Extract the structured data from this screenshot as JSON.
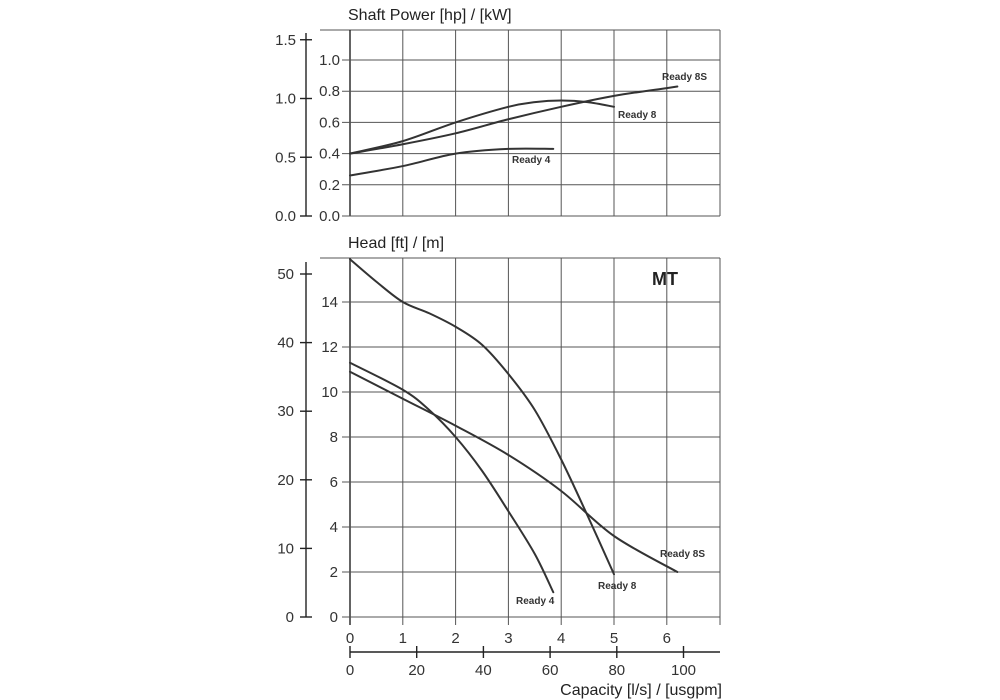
{
  "chart_data": [
    {
      "type": "line",
      "title": "Shaft Power [hp] / [kW]",
      "xlabel": "Capacity [l/s] / [usgpm]",
      "ylabel": "Shaft Power [kW]",
      "secondary_ylabel": "Shaft Power [hp]",
      "xlim": [
        0,
        7
      ],
      "ylim": [
        0,
        1.1
      ],
      "grid": true,
      "x_ticks": [
        "0",
        "1",
        "2",
        "3",
        "4",
        "5",
        "6"
      ],
      "y_ticks_kw": [
        "0.0",
        "0.2",
        "0.4",
        "0.6",
        "0.8",
        "1.0"
      ],
      "y_ticks_hp": [
        "0.0",
        "0.5",
        "1.0",
        "1.5"
      ],
      "series": [
        {
          "name": "Ready 8S",
          "x": [
            0,
            1,
            2,
            3,
            4,
            5,
            6,
            6.2
          ],
          "y": [
            0.4,
            0.46,
            0.53,
            0.62,
            0.7,
            0.77,
            0.82,
            0.83
          ]
        },
        {
          "name": "Ready 8",
          "x": [
            0,
            1,
            2,
            3,
            3.5,
            4,
            4.5,
            5
          ],
          "y": [
            0.4,
            0.48,
            0.6,
            0.7,
            0.73,
            0.74,
            0.73,
            0.7
          ]
        },
        {
          "name": "Ready 4",
          "x": [
            0,
            1,
            2,
            3,
            3.85
          ],
          "y": [
            0.26,
            0.32,
            0.4,
            0.43,
            0.43
          ]
        }
      ]
    },
    {
      "type": "line",
      "title": "Head [ft] / [m]",
      "badge": "MT",
      "xlabel": "Capacity [l/s] / [usgpm]",
      "ylabel": "Head [m]",
      "secondary_ylabel": "Head [ft]",
      "xlim": [
        0,
        7
      ],
      "ylim": [
        0,
        16
      ],
      "grid": true,
      "x_ticks": [
        "0",
        "1",
        "2",
        "3",
        "4",
        "5",
        "6"
      ],
      "x2_ticks_usgpm": [
        "0",
        "20",
        "40",
        "60",
        "80",
        "100"
      ],
      "y_ticks_m": [
        "0",
        "2",
        "4",
        "6",
        "8",
        "10",
        "12",
        "14"
      ],
      "y_ticks_ft": [
        "0",
        "10",
        "20",
        "30",
        "40",
        "50"
      ],
      "series": [
        {
          "name": "Ready 8",
          "x": [
            0,
            0.5,
            1,
            1.5,
            2,
            2.5,
            3,
            3.5,
            4,
            4.5,
            5
          ],
          "y": [
            15.9,
            14.9,
            14.0,
            13.5,
            12.9,
            12.1,
            10.8,
            9.2,
            7.0,
            4.5,
            1.9
          ]
        },
        {
          "name": "Ready 8S",
          "x": [
            0,
            1,
            2,
            3,
            4,
            5,
            6.2
          ],
          "y": [
            10.9,
            9.7,
            8.5,
            7.2,
            5.6,
            3.6,
            2.0
          ]
        },
        {
          "name": "Ready 4",
          "x": [
            0,
            1,
            1.5,
            2,
            2.5,
            3,
            3.5,
            3.85
          ],
          "y": [
            11.3,
            10.1,
            9.2,
            8.0,
            6.5,
            4.7,
            2.8,
            1.1
          ]
        }
      ]
    }
  ]
}
